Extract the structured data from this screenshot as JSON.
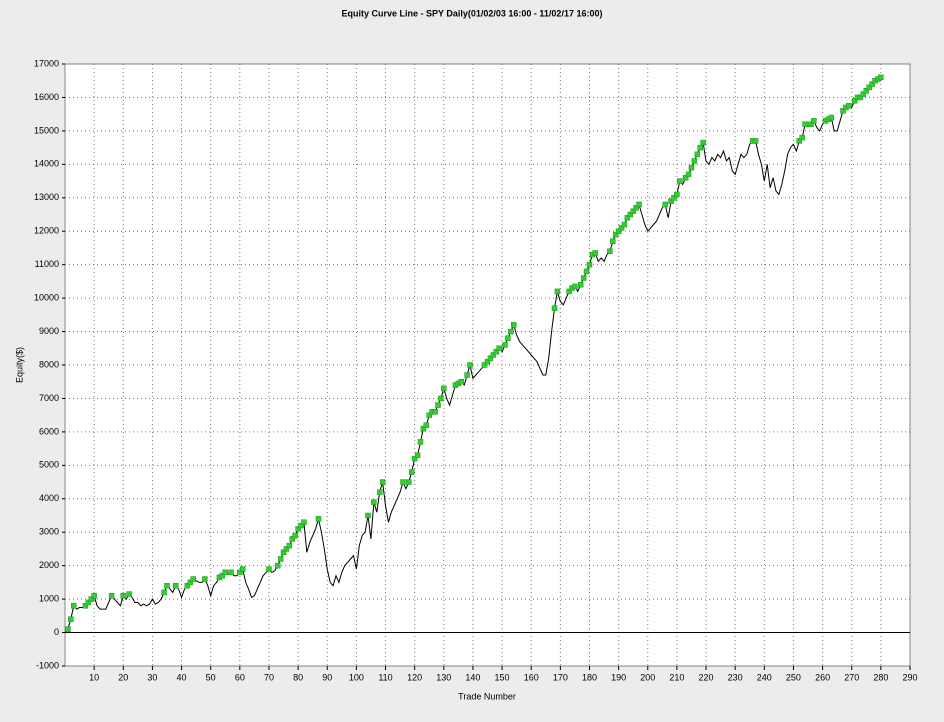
{
  "chart_data": {
    "type": "line",
    "title": "Equity Curve Line - SPY Daily(01/02/03 16:00 - 11/02/17 16:00)",
    "x_label": "Trade Number",
    "y_label": "Equity($)",
    "color": "#000000",
    "marker_color": "#33cc33",
    "grid": true,
    "xlim": [
      0,
      290
    ],
    "ylim": [
      -1000,
      17000
    ],
    "xticks": [
      10,
      20,
      30,
      40,
      50,
      60,
      70,
      80,
      90,
      100,
      110,
      120,
      130,
      140,
      150,
      160,
      170,
      180,
      190,
      200,
      210,
      220,
      230,
      240,
      250,
      260,
      270,
      280,
      290
    ],
    "yticks": [
      -1000,
      0,
      1000,
      2000,
      3000,
      4000,
      5000,
      6000,
      7000,
      8000,
      9000,
      10000,
      11000,
      12000,
      13000,
      14000,
      15000,
      16000,
      17000
    ],
    "x": [
      0,
      1,
      2,
      3,
      4,
      5,
      6,
      7,
      8,
      9,
      10,
      11,
      12,
      13,
      14,
      15,
      16,
      17,
      18,
      19,
      20,
      21,
      22,
      23,
      24,
      25,
      26,
      27,
      28,
      29,
      30,
      31,
      32,
      33,
      34,
      35,
      36,
      37,
      38,
      39,
      40,
      41,
      42,
      43,
      44,
      45,
      46,
      47,
      48,
      49,
      50,
      51,
      52,
      53,
      54,
      55,
      56,
      57,
      58,
      59,
      60,
      61,
      62,
      63,
      64,
      65,
      66,
      67,
      68,
      69,
      70,
      71,
      72,
      73,
      74,
      75,
      76,
      77,
      78,
      79,
      80,
      81,
      82,
      83,
      84,
      85,
      86,
      87,
      88,
      89,
      90,
      91,
      92,
      93,
      94,
      95,
      96,
      97,
      98,
      99,
      100,
      101,
      102,
      103,
      104,
      105,
      106,
      107,
      108,
      109,
      110,
      111,
      112,
      113,
      114,
      115,
      116,
      117,
      118,
      119,
      120,
      121,
      122,
      123,
      124,
      125,
      126,
      127,
      128,
      129,
      130,
      131,
      132,
      133,
      134,
      135,
      136,
      137,
      138,
      139,
      140,
      141,
      142,
      143,
      144,
      145,
      146,
      147,
      148,
      149,
      150,
      151,
      152,
      153,
      154,
      155,
      156,
      157,
      158,
      159,
      160,
      161,
      162,
      163,
      164,
      165,
      166,
      167,
      168,
      169,
      170,
      171,
      172,
      173,
      174,
      175,
      176,
      177,
      178,
      179,
      180,
      181,
      182,
      183,
      184,
      185,
      186,
      187,
      188,
      189,
      190,
      191,
      192,
      193,
      194,
      195,
      196,
      197,
      198,
      199,
      200,
      201,
      202,
      203,
      204,
      205,
      206,
      207,
      208,
      209,
      210,
      211,
      212,
      213,
      214,
      215,
      216,
      217,
      218,
      219,
      220,
      221,
      222,
      223,
      224,
      225,
      226,
      227,
      228,
      229,
      230,
      231,
      232,
      233,
      234,
      235,
      236,
      237,
      238,
      239,
      240,
      241,
      242,
      243,
      244,
      245,
      246,
      247,
      248,
      249,
      250,
      251,
      252,
      253,
      254,
      255,
      256,
      257,
      258,
      259,
      260,
      261,
      262,
      263,
      264,
      265,
      266,
      267,
      268,
      269,
      270,
      271,
      272,
      273,
      274,
      275,
      276,
      277,
      278,
      279,
      280
    ],
    "values": [
      0,
      100,
      400,
      800,
      700,
      750,
      750,
      800,
      900,
      1000,
      1100,
      800,
      700,
      700,
      700,
      900,
      1100,
      1000,
      900,
      800,
      1100,
      1000,
      1150,
      1050,
      900,
      900,
      800,
      850,
      800,
      850,
      1000,
      850,
      900,
      1000,
      1200,
      1400,
      1300,
      1200,
      1400,
      1300,
      1050,
      1300,
      1400,
      1500,
      1600,
      1550,
      1500,
      1500,
      1600,
      1400,
      1100,
      1400,
      1500,
      1650,
      1700,
      1800,
      1750,
      1800,
      1700,
      1700,
      1800,
      1900,
      1500,
      1300,
      1050,
      1100,
      1300,
      1500,
      1700,
      1800,
      1900,
      1800,
      1850,
      2000,
      2200,
      2400,
      2500,
      2600,
      2800,
      2900,
      3100,
      3200,
      3300,
      2400,
      2700,
      2900,
      3100,
      3400,
      3000,
      2500,
      1900,
      1500,
      1400,
      1700,
      1500,
      1800,
      2000,
      2100,
      2200,
      2300,
      1900,
      2600,
      2900,
      3000,
      3500,
      2800,
      3900,
      3600,
      4200,
      4500,
      3800,
      3300,
      3600,
      3800,
      4000,
      4200,
      4500,
      4300,
      4500,
      4800,
      5200,
      5300,
      5700,
      6100,
      6200,
      6500,
      6600,
      6600,
      6800,
      7000,
      7300,
      7000,
      6800,
      7100,
      7400,
      7450,
      7500,
      7400,
      7700,
      8000,
      7600,
      7700,
      7800,
      7900,
      8000,
      8100,
      8200,
      8300,
      8400,
      8500,
      8400,
      8600,
      8800,
      9000,
      9200,
      8900,
      8700,
      8600,
      8500,
      8400,
      8300,
      8200,
      8100,
      7900,
      7700,
      7700,
      8200,
      9000,
      9700,
      10200,
      9900,
      9800,
      10000,
      10200,
      10300,
      10350,
      10200,
      10400,
      10600,
      10800,
      11000,
      11300,
      11350,
      11100,
      11200,
      11100,
      11300,
      11400,
      11700,
      11900,
      12000,
      12100,
      12200,
      12400,
      12500,
      12600,
      12700,
      12800,
      12500,
      12200,
      12000,
      12100,
      12200,
      12300,
      12500,
      12700,
      12800,
      12400,
      12900,
      13000,
      13100,
      13500,
      13400,
      13600,
      13700,
      13900,
      14100,
      14300,
      14500,
      14650,
      14100,
      14000,
      14200,
      14100,
      14300,
      14200,
      14400,
      14100,
      14200,
      13800,
      13700,
      14000,
      14300,
      14200,
      14300,
      14600,
      14700,
      14700,
      14300,
      14000,
      13500,
      14000,
      13300,
      13600,
      13200,
      13100,
      13400,
      13800,
      14300,
      14500,
      14600,
      14400,
      14700,
      14800,
      15200,
      15150,
      15200,
      15300,
      15100,
      15000,
      15200,
      15300,
      15350,
      15400,
      15000,
      15000,
      15300,
      15600,
      15700,
      15750,
      15700,
      15900,
      16000,
      16000,
      16100,
      16200,
      16300,
      16400,
      16500,
      16550,
      16600
    ]
  }
}
